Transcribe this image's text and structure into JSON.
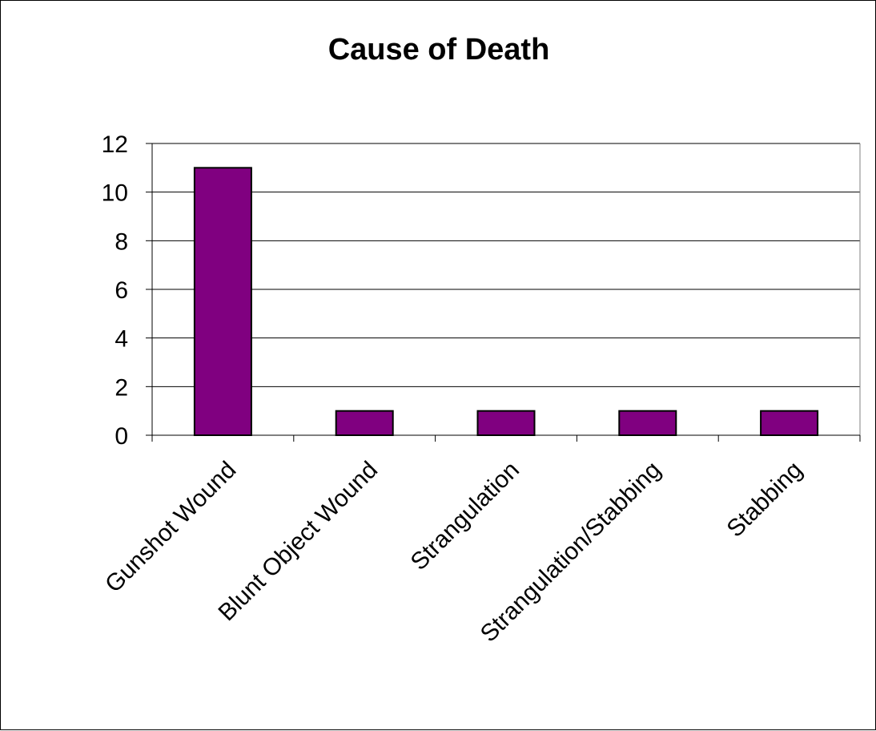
{
  "chart_data": {
    "type": "bar",
    "title": "Cause of Death",
    "xlabel": "",
    "ylabel": "",
    "categories": [
      "Gunshot Wound",
      "Blunt Object Wound",
      "Strangulation",
      "Strangulation/Stabbing",
      "Stabbing"
    ],
    "values": [
      11,
      1,
      1,
      1,
      1
    ],
    "ylim": [
      0,
      12
    ],
    "yticks": [
      0,
      2,
      4,
      6,
      8,
      10,
      12
    ],
    "grid": true,
    "legend": "none",
    "bar_color": "#800080",
    "gridline_color": "#000000"
  }
}
